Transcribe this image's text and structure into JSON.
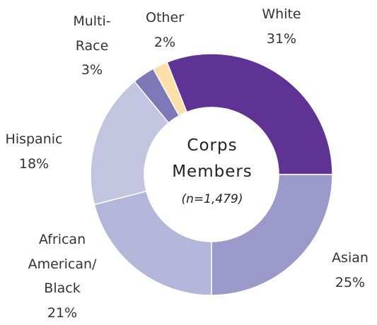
{
  "chart_data": {
    "type": "donut",
    "title": "Corps\nMembers",
    "subtitle": "(n=1,479)",
    "categories": [
      "White",
      "Asian",
      "African\nAmerican/\nBlack",
      "Hispanic",
      "Multi-\nRace",
      "Other"
    ],
    "values": [
      31,
      25,
      21,
      18,
      3,
      2
    ],
    "value_labels": [
      "31%",
      "25%",
      "21%",
      "18%",
      "3%",
      "2%"
    ],
    "colors": [
      "#5f3393",
      "#9b99c9",
      "#b3b5d9",
      "#c3c5e0",
      "#7f78b6",
      "#fde0a9"
    ]
  }
}
